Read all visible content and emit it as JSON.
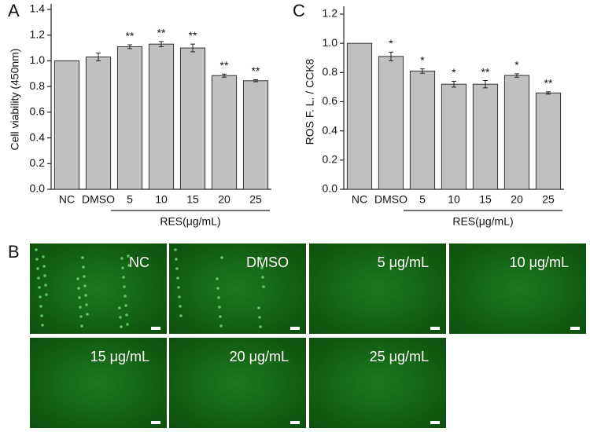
{
  "chart_data": [
    {
      "type": "bar",
      "panel": "A",
      "y_label": "Cell viability (450nm)",
      "categories": [
        "NC",
        "DMSO",
        "5",
        "10",
        "15",
        "20",
        "25"
      ],
      "values": [
        1.0,
        1.03,
        1.11,
        1.13,
        1.1,
        0.885,
        0.845
      ],
      "errors": [
        0,
        0.03,
        0.015,
        0.02,
        0.03,
        0.012,
        0.008
      ],
      "annotations": [
        null,
        null,
        "**",
        "**",
        "**",
        "**",
        "**"
      ],
      "group_label": "RES(μg/mL)",
      "color": "#c0c0c0",
      "ylim": [
        0,
        1.4
      ],
      "yticks": [
        {
          "value": 0,
          "label": "0.0"
        },
        {
          "value": 0.2,
          "label": "0.2"
        },
        {
          "value": 0.4,
          "label": "0.4"
        },
        {
          "value": 0.6,
          "label": "0.6"
        },
        {
          "value": 0.8,
          "label": "0.8"
        },
        {
          "value": 1.0,
          "label": "1.0"
        },
        {
          "value": 1.2,
          "label": "1.2"
        },
        {
          "value": 1.4,
          "label": "1.4"
        }
      ]
    },
    {
      "type": "bar",
      "panel": "C",
      "y_label": "ROS F. L. / CCK8",
      "categories": [
        "NC",
        "DMSO",
        "5",
        "10",
        "15",
        "20",
        "25"
      ],
      "values": [
        1.0,
        0.91,
        0.81,
        0.72,
        0.72,
        0.78,
        0.66
      ],
      "errors": [
        0,
        0.03,
        0.015,
        0.02,
        0.025,
        0.012,
        0.008
      ],
      "annotations": [
        null,
        "*",
        "*",
        "*",
        "**",
        "*",
        "**"
      ],
      "group_label": "RES(μg/mL)",
      "color": "#c0c0c0",
      "ylim": [
        0,
        1.2
      ],
      "yticks": [
        {
          "value": 0,
          "label": "0.0"
        },
        {
          "value": 0.2,
          "label": "0.2"
        },
        {
          "value": 0.4,
          "label": "0.4"
        },
        {
          "value": 0.6,
          "label": "0.6"
        },
        {
          "value": 0.8,
          "label": "0.8"
        },
        {
          "value": 1.0,
          "label": "1.0"
        },
        {
          "value": 1.2,
          "label": "1.2"
        }
      ]
    }
  ],
  "images": {
    "panel": "B",
    "labels": [
      "NC",
      "DMSO",
      "5 μg/mL",
      "10 μg/mL",
      "15 μg/mL",
      "20 μg/mL",
      "25 μg/mL"
    ]
  }
}
